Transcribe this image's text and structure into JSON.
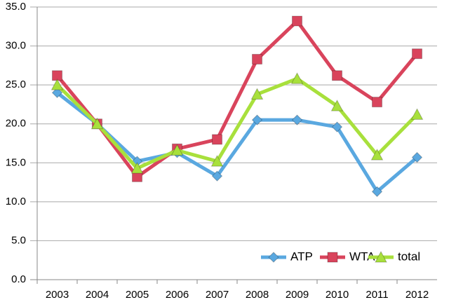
{
  "chart_data": {
    "type": "line",
    "categories": [
      "2003",
      "2004",
      "2005",
      "2006",
      "2007",
      "2008",
      "2009",
      "2010",
      "2011",
      "2012"
    ],
    "series": [
      {
        "name": "ATP",
        "color": "#5aa8e0",
        "marker": "diamond",
        "values": [
          24.0,
          20.0,
          15.2,
          16.3,
          13.3,
          20.5,
          20.5,
          19.6,
          11.3,
          15.7
        ]
      },
      {
        "name": "WTA",
        "color": "#d9445c",
        "marker": "square",
        "values": [
          26.2,
          20.0,
          13.2,
          16.8,
          18.0,
          28.3,
          33.2,
          26.2,
          22.8,
          29.0
        ]
      },
      {
        "name": "total",
        "color": "#a8e03c",
        "marker": "triangle",
        "values": [
          25.0,
          20.0,
          14.3,
          16.6,
          15.2,
          23.8,
          25.8,
          22.3,
          16.0,
          21.2
        ]
      }
    ],
    "ylim": [
      0,
      35
    ],
    "yticks": [
      {
        "value": 0,
        "label": "0.0"
      },
      {
        "value": 5,
        "label": "5.0"
      },
      {
        "value": 10,
        "label": "10.0"
      },
      {
        "value": 15,
        "label": "15.0"
      },
      {
        "value": 20,
        "label": "20.0"
      },
      {
        "value": 25,
        "label": "25.0"
      },
      {
        "value": 30,
        "label": "30.0"
      },
      {
        "value": 35,
        "label": "35.0"
      }
    ],
    "grid": true,
    "legend": "bottom-right"
  }
}
